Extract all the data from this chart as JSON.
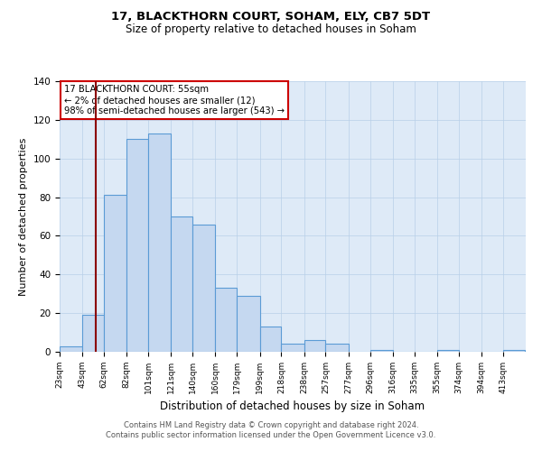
{
  "title1": "17, BLACKTHORN COURT, SOHAM, ELY, CB7 5DT",
  "title2": "Size of property relative to detached houses in Soham",
  "xlabel": "Distribution of detached houses by size in Soham",
  "ylabel": "Number of detached properties",
  "bin_labels": [
    "23sqm",
    "43sqm",
    "62sqm",
    "82sqm",
    "101sqm",
    "121sqm",
    "140sqm",
    "160sqm",
    "179sqm",
    "199sqm",
    "218sqm",
    "238sqm",
    "257sqm",
    "277sqm",
    "296sqm",
    "316sqm",
    "335sqm",
    "355sqm",
    "374sqm",
    "394sqm",
    "413sqm"
  ],
  "bin_edges": [
    23,
    43,
    62,
    82,
    101,
    121,
    140,
    160,
    179,
    199,
    218,
    238,
    257,
    277,
    296,
    316,
    335,
    355,
    374,
    394,
    413
  ],
  "bar_heights": [
    3,
    19,
    81,
    110,
    113,
    70,
    66,
    33,
    29,
    13,
    4,
    6,
    4,
    0,
    1,
    0,
    0,
    1,
    0,
    0,
    1
  ],
  "bar_color": "#c5d8f0",
  "bar_edge_color": "#5b9bd5",
  "property_value": 55,
  "vline_color": "#8b0000",
  "annotation_title": "17 BLACKTHORN COURT: 55sqm",
  "annotation_line1": "← 2% of detached houses are smaller (12)",
  "annotation_line2": "98% of semi-detached houses are larger (543) →",
  "annotation_box_color": "#ffffff",
  "annotation_box_edge_color": "#cc0000",
  "ylim": [
    0,
    140
  ],
  "yticks": [
    0,
    20,
    40,
    60,
    80,
    100,
    120,
    140
  ],
  "footer1": "Contains HM Land Registry data © Crown copyright and database right 2024.",
  "footer2": "Contains public sector information licensed under the Open Government Licence v3.0.",
  "axes_bg_color": "#deeaf7",
  "fig_bg_color": "#ffffff"
}
